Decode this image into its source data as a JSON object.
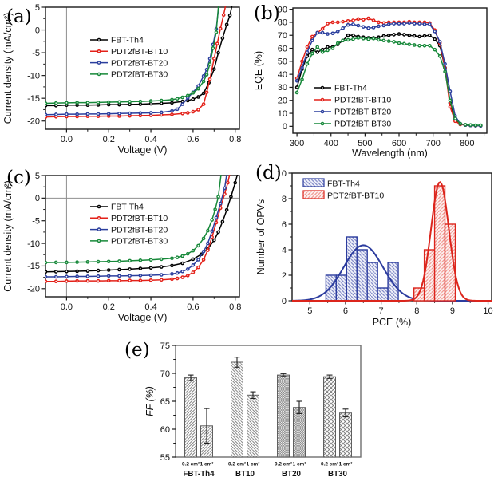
{
  "figure": {
    "panel_labels": {
      "a": "(a)",
      "b": "(b)",
      "c": "(c)",
      "d": "(d)",
      "e": "(e)"
    }
  },
  "colors": {
    "black": "#000000",
    "red": "#e32119",
    "blue": "#2b3f9e",
    "green": "#17893a",
    "frame": "#1a1a1a",
    "frame_e": "#6f6f6f",
    "zero": "#8f8f8f",
    "hist_blue": "#2c3c9e",
    "hist_blue_hatch": "#7a84c4",
    "hist_blue_bg": "#f2f3fb",
    "hist_red": "#dc251c",
    "hist_red_hatch": "#f0948d",
    "hist_red_bg": "#fdf3f2",
    "bar_hatch": "#7a7a7a",
    "bar_edge": "#5f5f5f",
    "error": "#1f1f1f"
  },
  "chart_data": [
    {
      "panel": "a",
      "type": "line",
      "xlabel": "Voltage (V)",
      "ylabel": "Current density (mA/cm²)",
      "xlim": [
        -0.1,
        0.82
      ],
      "ylim": [
        -21.8,
        5
      ],
      "xticks": [
        0.0,
        0.2,
        0.4,
        0.6,
        0.8
      ],
      "yticks": [
        5,
        0,
        -5,
        -10,
        -15,
        -20
      ],
      "xminor": [
        0.1,
        0.3,
        0.5,
        0.7
      ],
      "yminor": [
        2.5,
        -2.5,
        -7.5,
        -12.5,
        -17.5
      ],
      "zero_lines": true,
      "series": [
        {
          "name": "FBT-Th4",
          "color_key": "black",
          "x": [
            -0.1,
            -0.05,
            0.0,
            0.05,
            0.1,
            0.15,
            0.2,
            0.25,
            0.3,
            0.35,
            0.4,
            0.45,
            0.5,
            0.55,
            0.575,
            0.6,
            0.625,
            0.65,
            0.675,
            0.7,
            0.72,
            0.74,
            0.76,
            0.775,
            0.79
          ],
          "y": [
            -16.6,
            -16.6,
            -16.5,
            -16.5,
            -16.5,
            -16.45,
            -16.4,
            -16.4,
            -16.35,
            -16.3,
            -16.2,
            -16.1,
            -16.0,
            -15.7,
            -15.5,
            -15.2,
            -14.7,
            -13.9,
            -11.6,
            -8.6,
            -5.0,
            -1.8,
            1.2,
            3.2,
            6.5
          ]
        },
        {
          "name": "PDT2fBT-BT10",
          "color_key": "red",
          "x": [
            -0.1,
            -0.05,
            0.0,
            0.05,
            0.1,
            0.15,
            0.2,
            0.25,
            0.3,
            0.35,
            0.4,
            0.45,
            0.5,
            0.55,
            0.575,
            0.6,
            0.625,
            0.65,
            0.665,
            0.68,
            0.7,
            0.715,
            0.73,
            0.745,
            0.76
          ],
          "y": [
            -19.1,
            -19.05,
            -19.0,
            -19.0,
            -18.95,
            -18.95,
            -18.9,
            -18.9,
            -18.85,
            -18.8,
            -18.75,
            -18.65,
            -18.55,
            -18.35,
            -18.2,
            -17.95,
            -17.5,
            -16.3,
            -13.7,
            -10.8,
            -6.3,
            -3.0,
            0.3,
            3.3,
            6.5
          ]
        },
        {
          "name": "PDT2fBT-BT20",
          "color_key": "blue",
          "x": [
            -0.1,
            -0.05,
            0.0,
            0.05,
            0.1,
            0.15,
            0.2,
            0.25,
            0.3,
            0.35,
            0.4,
            0.45,
            0.5,
            0.525,
            0.55,
            0.575,
            0.6,
            0.625,
            0.65,
            0.665,
            0.68,
            0.695,
            0.71,
            0.725
          ],
          "y": [
            -18.6,
            -18.55,
            -18.5,
            -18.5,
            -18.45,
            -18.45,
            -18.4,
            -18.35,
            -18.3,
            -18.25,
            -18.2,
            -18.1,
            -17.8,
            -17.4,
            -16.3,
            -14.9,
            -13.7,
            -12.3,
            -10.1,
            -8.7,
            -6.3,
            -3.2,
            0.2,
            6.5
          ]
        },
        {
          "name": "PDT2fBT-BT30",
          "color_key": "green",
          "x": [
            -0.1,
            -0.05,
            0.0,
            0.05,
            0.1,
            0.15,
            0.2,
            0.25,
            0.3,
            0.35,
            0.4,
            0.45,
            0.5,
            0.525,
            0.55,
            0.575,
            0.6,
            0.625,
            0.65,
            0.665,
            0.68,
            0.695,
            0.71,
            0.722
          ],
          "y": [
            -16.1,
            -16.05,
            -16.0,
            -15.95,
            -15.95,
            -15.9,
            -15.85,
            -15.8,
            -15.75,
            -15.7,
            -15.6,
            -15.5,
            -15.3,
            -15.1,
            -14.8,
            -14.4,
            -13.8,
            -12.9,
            -11.3,
            -9.8,
            -7.5,
            -4.0,
            -0.5,
            6.0
          ]
        }
      ]
    },
    {
      "panel": "b",
      "type": "line",
      "xlabel": "Wavelength (nm)",
      "ylabel": "EQE (%)",
      "xlim": [
        288,
        858
      ],
      "ylim": [
        -5.3,
        91
      ],
      "xticks": [
        300,
        400,
        500,
        600,
        700,
        800
      ],
      "yticks": [
        0,
        10,
        20,
        30,
        40,
        50,
        60,
        70,
        80,
        90
      ],
      "xminor": [
        350,
        450,
        550,
        650,
        750,
        850
      ],
      "yminor": [],
      "zero_lines": false,
      "x": [
        300,
        315,
        330,
        345,
        360,
        375,
        390,
        405,
        420,
        435,
        450,
        465,
        480,
        495,
        510,
        525,
        540,
        555,
        570,
        585,
        600,
        615,
        630,
        645,
        660,
        675,
        690,
        705,
        720,
        735,
        750,
        765,
        780,
        795,
        810,
        825,
        840
      ],
      "series": [
        {
          "name": "FBT-Th4",
          "color_key": "black",
          "y": [
            30,
            44,
            54,
            59,
            57,
            59,
            61,
            61,
            63,
            66,
            70,
            70,
            69,
            68.5,
            68,
            68,
            68.5,
            69.5,
            70,
            70.5,
            71,
            70.5,
            70,
            69.5,
            69,
            69.5,
            70,
            67,
            62,
            45,
            18,
            5,
            1.5,
            1,
            0.7,
            0.5,
            0.5
          ]
        },
        {
          "name": "PDT2fBT-BT10",
          "color_key": "red",
          "y": [
            37,
            50,
            61,
            69,
            72,
            75,
            79,
            80,
            80,
            80.5,
            81,
            81.5,
            82.5,
            82,
            83,
            81.5,
            80,
            79.5,
            80,
            80,
            80,
            80,
            80.5,
            80,
            80,
            80,
            79.5,
            74,
            64,
            45,
            15,
            4,
            1.5,
            1,
            0.7,
            0.5,
            0.4
          ]
        },
        {
          "name": "PDT2fBT-BT20",
          "color_key": "blue",
          "y": [
            35,
            45,
            57,
            66,
            72,
            72,
            71,
            71.5,
            73,
            75.5,
            78,
            78.5,
            77.5,
            76.5,
            75.5,
            76,
            77,
            77.5,
            78.5,
            79,
            79,
            79,
            79.5,
            79,
            79,
            78.5,
            78.5,
            73,
            65,
            48,
            27,
            8,
            2,
            1,
            0.7,
            0.5,
            0.4
          ]
        },
        {
          "name": "PDT2fBT-BT30",
          "color_key": "green",
          "y": [
            26,
            36,
            48,
            56,
            61,
            57,
            58.5,
            60,
            64,
            66,
            66.5,
            67,
            68,
            67.5,
            67,
            67.5,
            66.5,
            66,
            65.5,
            65,
            64,
            63.5,
            63,
            62.5,
            62,
            62,
            62,
            59,
            54,
            42,
            20,
            6,
            2,
            1.2,
            1,
            0.8,
            0.8
          ]
        }
      ]
    },
    {
      "panel": "c",
      "type": "line",
      "xlabel": "Voltage (V)",
      "ylabel": "Current density (mA/cm²)",
      "xlim": [
        -0.1,
        0.82
      ],
      "ylim": [
        -21.8,
        5
      ],
      "xticks": [
        0.0,
        0.2,
        0.4,
        0.6,
        0.8
      ],
      "yticks": [
        5,
        0,
        -5,
        -10,
        -15,
        -20
      ],
      "xminor": [
        0.1,
        0.3,
        0.5,
        0.7
      ],
      "yminor": [
        2.5,
        -2.5,
        -7.5,
        -12.5,
        -17.5
      ],
      "zero_lines": true,
      "series": [
        {
          "name": "FBT-Th4",
          "color_key": "black",
          "x": [
            -0.1,
            -0.05,
            0.0,
            0.05,
            0.1,
            0.15,
            0.2,
            0.25,
            0.3,
            0.35,
            0.4,
            0.45,
            0.5,
            0.55,
            0.6,
            0.64,
            0.67,
            0.7,
            0.72,
            0.74,
            0.76,
            0.78,
            0.8,
            0.815
          ],
          "y": [
            -16.3,
            -16.25,
            -16.2,
            -16.15,
            -16.1,
            -16.0,
            -15.9,
            -15.8,
            -15.7,
            -15.55,
            -15.4,
            -15.2,
            -14.9,
            -14.4,
            -13.5,
            -12.4,
            -11.2,
            -9.3,
            -7.5,
            -5.2,
            -2.6,
            0.3,
            3.4,
            6.0
          ]
        },
        {
          "name": "PDT2fBT-BT10",
          "color_key": "red",
          "x": [
            -0.1,
            -0.05,
            0.0,
            0.05,
            0.1,
            0.15,
            0.2,
            0.25,
            0.3,
            0.35,
            0.4,
            0.45,
            0.5,
            0.525,
            0.55,
            0.575,
            0.6,
            0.625,
            0.65,
            0.67,
            0.69,
            0.71,
            0.73,
            0.75,
            0.765,
            0.78
          ],
          "y": [
            -18.4,
            -18.4,
            -18.35,
            -18.3,
            -18.3,
            -18.3,
            -18.25,
            -18.25,
            -18.2,
            -18.2,
            -18.15,
            -18.05,
            -17.9,
            -17.75,
            -17.5,
            -17.1,
            -16.4,
            -15.3,
            -13.6,
            -11.5,
            -8.6,
            -5.4,
            -2.2,
            0.9,
            3.4,
            6.5
          ]
        },
        {
          "name": "PDT2fBT-BT20",
          "color_key": "blue",
          "x": [
            -0.1,
            -0.05,
            0.0,
            0.05,
            0.1,
            0.15,
            0.2,
            0.25,
            0.3,
            0.35,
            0.4,
            0.45,
            0.5,
            0.525,
            0.55,
            0.575,
            0.6,
            0.625,
            0.65,
            0.67,
            0.69,
            0.71,
            0.73,
            0.75,
            0.762
          ],
          "y": [
            -17.4,
            -17.4,
            -17.35,
            -17.3,
            -17.3,
            -17.25,
            -17.2,
            -17.2,
            -17.15,
            -17.1,
            -17.05,
            -16.95,
            -16.75,
            -16.55,
            -16.2,
            -15.7,
            -14.8,
            -13.6,
            -11.8,
            -10.0,
            -7.3,
            -4.3,
            -1.2,
            2.2,
            6.0
          ]
        },
        {
          "name": "PDT2fBT-BT30",
          "color_key": "green",
          "x": [
            -0.1,
            -0.05,
            0.0,
            0.05,
            0.1,
            0.15,
            0.2,
            0.25,
            0.3,
            0.35,
            0.4,
            0.45,
            0.5,
            0.525,
            0.55,
            0.575,
            0.6,
            0.625,
            0.65,
            0.67,
            0.69,
            0.705,
            0.72,
            0.735
          ],
          "y": [
            -14.25,
            -14.2,
            -14.2,
            -14.15,
            -14.1,
            -14.05,
            -14.0,
            -13.95,
            -13.85,
            -13.75,
            -13.65,
            -13.5,
            -13.3,
            -13.1,
            -12.8,
            -12.3,
            -11.6,
            -10.5,
            -8.9,
            -7.2,
            -4.8,
            -2.5,
            0.3,
            6.0
          ]
        }
      ]
    },
    {
      "panel": "d",
      "type": "histogram",
      "xlabel": "PCE (%)",
      "ylabel": "Number of OPVs",
      "xlim": [
        4.5,
        10.1
      ],
      "ylim": [
        0,
        10
      ],
      "xticks": [
        5,
        6,
        7,
        8,
        9,
        10
      ],
      "yticks": [
        0,
        2,
        4,
        6,
        8,
        10
      ],
      "xminor": [
        5.5,
        6.5,
        7.5,
        8.5,
        9.5
      ],
      "yminor": [
        1,
        3,
        5,
        7,
        9
      ],
      "series": [
        {
          "name": "FBT-Th4",
          "color_key": "hist_blue",
          "hatch": "\\",
          "hatch_key": "hist_blue_hatch",
          "bg_key": "hist_blue_bg",
          "bin_start": 5.45,
          "bin_width": 0.29,
          "counts": [
            2,
            2,
            5,
            4,
            3,
            1,
            3
          ],
          "gauss": {
            "amp": 4.35,
            "mean": 6.5,
            "sigma": 0.55
          }
        },
        {
          "name": "PDT2fBT-BT10",
          "color_key": "hist_red",
          "hatch": "/",
          "hatch_key": "hist_red_hatch",
          "bg_key": "hist_red_bg",
          "bin_start": 7.92,
          "bin_width": 0.29,
          "counts": [
            1,
            4,
            9,
            6
          ],
          "gauss": {
            "amp": 9.3,
            "mean": 8.65,
            "sigma": 0.25
          }
        }
      ]
    },
    {
      "panel": "e",
      "type": "bar",
      "ylabel": "FF (%)",
      "ylabel_italic": true,
      "ylim": [
        55,
        75
      ],
      "yticks": [
        55,
        60,
        65,
        70,
        75
      ],
      "yminor": [
        57.5,
        62.5,
        67.5,
        72.5
      ],
      "bar_sublabels": [
        "0.2 cm²",
        "1 cm²"
      ],
      "groups": [
        {
          "label": "FBT-Th4",
          "pattern": "diag1",
          "values": [
            69.2,
            60.6
          ],
          "errors": [
            0.5,
            3.1
          ]
        },
        {
          "label": "BT10",
          "pattern": "diag2",
          "values": [
            72.0,
            66.1
          ],
          "errors": [
            0.9,
            0.6
          ]
        },
        {
          "label": "BT20",
          "pattern": "cross-fine",
          "values": [
            69.7,
            63.9
          ],
          "errors": [
            0.25,
            1.1
          ]
        },
        {
          "label": "BT30",
          "pattern": "cross",
          "values": [
            69.4,
            62.9
          ],
          "errors": [
            0.3,
            0.7
          ]
        }
      ]
    }
  ]
}
